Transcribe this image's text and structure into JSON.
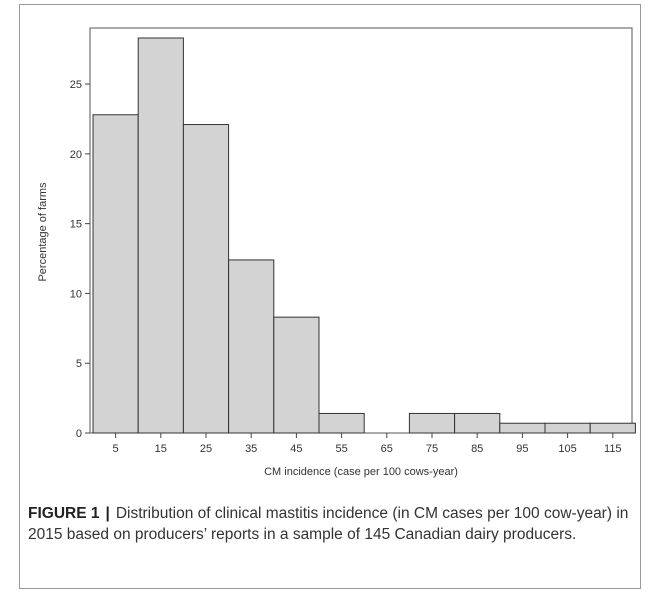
{
  "chart_data": {
    "type": "bar",
    "categories": [
      "5",
      "15",
      "25",
      "35",
      "45",
      "55",
      "65",
      "75",
      "85",
      "95",
      "105",
      "115"
    ],
    "values": [
      22.8,
      28.3,
      22.1,
      12.4,
      8.3,
      1.4,
      0,
      1.4,
      1.4,
      0.7,
      0.7,
      0.7
    ],
    "xlabel": "CM incidence (case per 100 cows-year)",
    "ylabel": "Percentage of farms",
    "yticks": [
      0,
      5,
      10,
      15,
      20,
      25
    ],
    "ylim": [
      0,
      28.3
    ],
    "bar_color": "#d3d3d3",
    "bar_edge_color": "#333333",
    "grid": false
  },
  "caption": {
    "label": "FIGURE 1",
    "separator": "|",
    "text": "Distribution of clinical mastitis incidence (in CM cases per 100 cow-year) in 2015 based on producers’ reports in a sample of 145 Canadian dairy producers."
  }
}
